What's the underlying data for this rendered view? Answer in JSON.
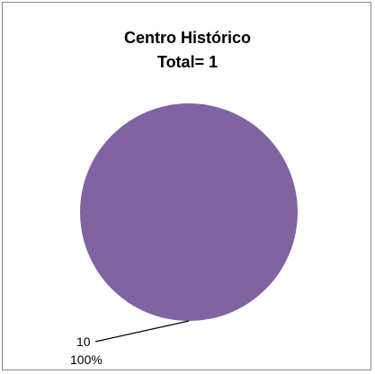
{
  "chart_data": {
    "type": "pie",
    "title": "Centro Histórico",
    "subtitle": "Total=  1",
    "slices": [
      {
        "label": "10",
        "value": 1,
        "percent_label": "100%",
        "color": "#8064a2"
      }
    ],
    "legend": "none"
  }
}
